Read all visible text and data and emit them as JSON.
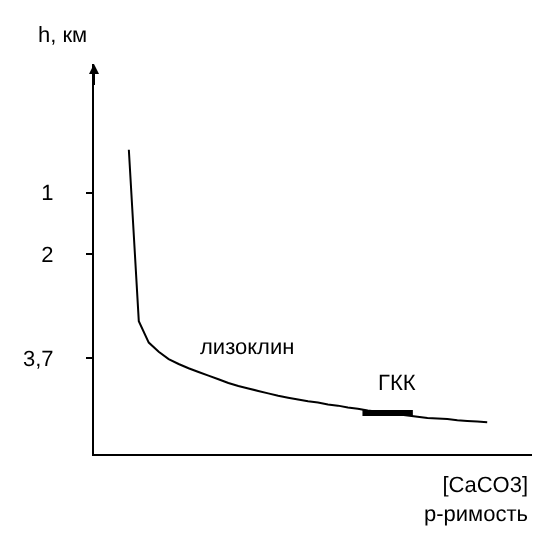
{
  "chart_data": {
    "type": "line",
    "ylabel": "h, км",
    "xlabel": "[CaCO3]\nр-римость",
    "categories": [
      null,
      null,
      null,
      null,
      null,
      null,
      null,
      null,
      null,
      null,
      null,
      null,
      null,
      null,
      null,
      null,
      null,
      null,
      null,
      null,
      null,
      null,
      null,
      null,
      null,
      null,
      null,
      null,
      null,
      null,
      null,
      null,
      null,
      null,
      null,
      null,
      null,
      null,
      null,
      null,
      null,
      null,
      null,
      null
    ],
    "series": [
      {
        "color": "#000000",
        "values": [
          null,
          null,
          null,
          0.3,
          3.1,
          3.45,
          3.6,
          3.72,
          3.8,
          3.87,
          3.93,
          3.99,
          4.05,
          4.11,
          4.16,
          4.2,
          4.24,
          4.28,
          4.32,
          4.35,
          4.38,
          4.41,
          4.43,
          4.46,
          4.48,
          4.51,
          4.53,
          4.56,
          4.58,
          4.6,
          4.62,
          4.64,
          4.66,
          4.68,
          4.69,
          4.7,
          4.72,
          4.73,
          4.74,
          4.75,
          null,
          null,
          null,
          null
        ]
      }
    ],
    "ylim": [
      5.27,
      -1.1
    ],
    "yticks": [
      1,
      2,
      {
        "value": 3.7,
        "label": "3,7"
      }
    ],
    "tick_labels": "y",
    "marker": "none",
    "line_style": "solid",
    "annotations": [
      "лизоклин",
      {
        "text": "ГКК",
        "y": 4.6
      }
    ]
  }
}
